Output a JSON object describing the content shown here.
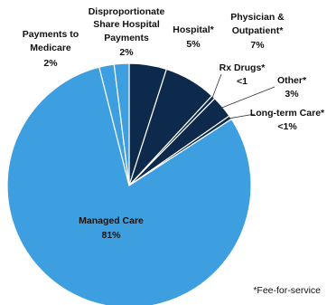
{
  "chart_data": {
    "type": "pie",
    "slices": [
      {
        "label": "Hospital*",
        "value_label": "5%",
        "value": 5,
        "color": "#0d2a4d"
      },
      {
        "label": "Physician & Outpatient*",
        "value_label": "7%",
        "value": 7,
        "color": "#0d2a4d"
      },
      {
        "label": "Rx Drugs*",
        "value_label": "<1",
        "value": 0.5,
        "color": "#0d2a4d"
      },
      {
        "label": "Other*",
        "value_label": "3%",
        "value": 3,
        "color": "#0d2a4d"
      },
      {
        "label": "Long-term Care*",
        "value_label": "<1%",
        "value": 0.5,
        "color": "#0d2a4d"
      },
      {
        "label": "Managed Care",
        "value_label": "81%",
        "value": 81,
        "color": "#3d9fe0"
      },
      {
        "label": "Payments to Medicare",
        "value_label": "2%",
        "value": 2,
        "color": "#3d9fe0"
      },
      {
        "label": "Disproportionate Share Hospital Payments",
        "value_label": "2%",
        "value": 2,
        "color": "#3d9fe0"
      }
    ],
    "footnote": "*Fee-for-service"
  }
}
